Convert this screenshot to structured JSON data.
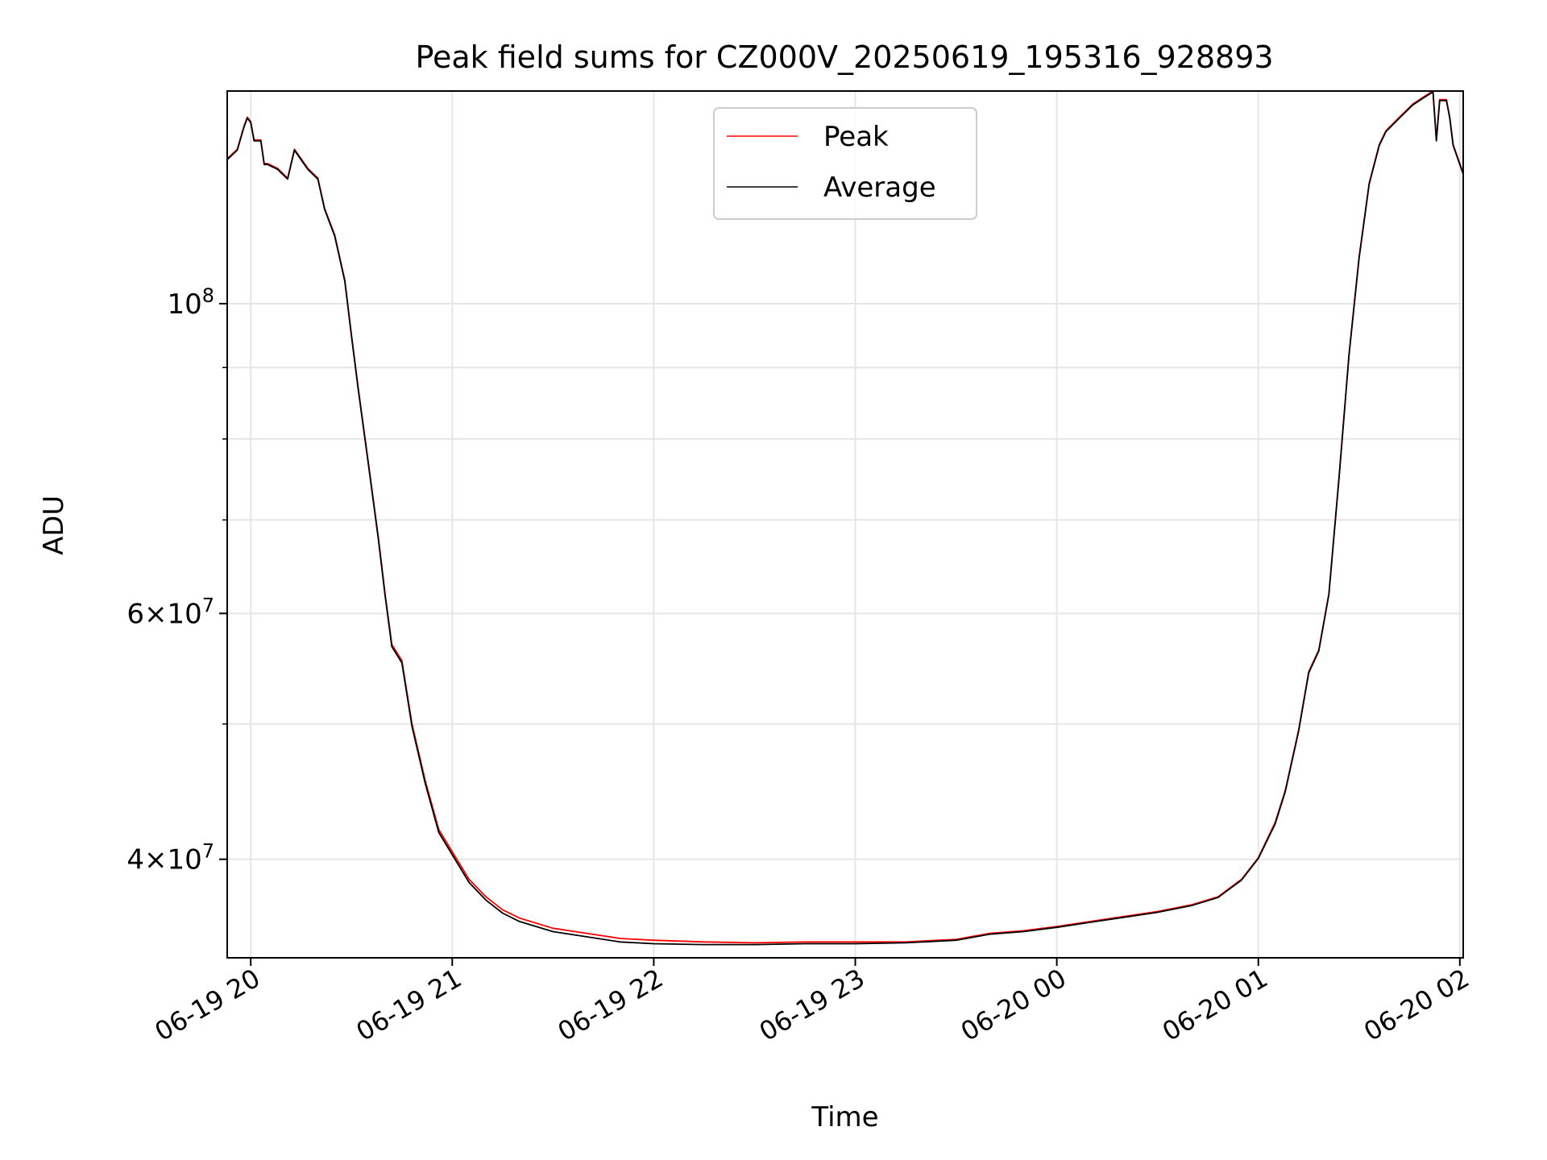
{
  "chart_data": {
    "type": "line",
    "title": "Peak field sums for CZ000V_20250619_195316_928893",
    "xlabel": "Time",
    "ylabel": "ADU",
    "y_scale": "log",
    "grid": true,
    "legend_position": "top-center",
    "x_ticks": [
      "06-19 20",
      "06-19 21",
      "06-19 22",
      "06-19 23",
      "06-20 00",
      "06-20 01",
      "06-20 02"
    ],
    "y_ticks": [
      {
        "value": 40000000,
        "base": "4",
        "exp": "7"
      },
      {
        "value": 60000000,
        "base": "6",
        "exp": "7"
      },
      {
        "value": 100000000,
        "base": "",
        "exp": "8"
      }
    ],
    "xlim": [
      "2025-06-19 19:53",
      "2025-06-20 02:01"
    ],
    "ylim": [
      34000000,
      142000000
    ],
    "colors": {
      "peak": "#ff0000",
      "average": "#000000"
    },
    "series": [
      {
        "name": "Peak",
        "x": [
          "2025-06-19 19:53",
          "2025-06-19 19:56",
          "2025-06-19 19:58",
          "2025-06-19 19:59",
          "2025-06-19 20:00",
          "2025-06-19 20:01",
          "2025-06-19 20:03",
          "2025-06-19 20:04",
          "2025-06-19 20:05",
          "2025-06-19 20:08",
          "2025-06-19 20:11",
          "2025-06-19 20:13",
          "2025-06-19 20:14",
          "2025-06-19 20:17",
          "2025-06-19 20:20",
          "2025-06-19 20:22",
          "2025-06-19 20:25",
          "2025-06-19 20:28",
          "2025-06-19 20:30",
          "2025-06-19 20:32",
          "2025-06-19 20:35",
          "2025-06-19 20:38",
          "2025-06-19 20:40",
          "2025-06-19 20:42",
          "2025-06-19 20:45",
          "2025-06-19 20:48",
          "2025-06-19 20:52",
          "2025-06-19 20:56",
          "2025-06-19 21:00",
          "2025-06-19 21:05",
          "2025-06-19 21:10",
          "2025-06-19 21:15",
          "2025-06-19 21:20",
          "2025-06-19 21:30",
          "2025-06-19 21:40",
          "2025-06-19 21:50",
          "2025-06-19 22:00",
          "2025-06-19 22:15",
          "2025-06-19 22:30",
          "2025-06-19 22:45",
          "2025-06-19 23:00",
          "2025-06-19 23:15",
          "2025-06-19 23:30",
          "2025-06-19 23:40",
          "2025-06-19 23:50",
          "2025-06-20 00:00",
          "2025-06-20 00:10",
          "2025-06-20 00:20",
          "2025-06-20 00:30",
          "2025-06-20 00:40",
          "2025-06-20 00:48",
          "2025-06-20 00:55",
          "2025-06-20 01:00",
          "2025-06-20 01:05",
          "2025-06-20 01:08",
          "2025-06-20 01:12",
          "2025-06-20 01:15",
          "2025-06-20 01:18",
          "2025-06-20 01:21",
          "2025-06-20 01:24",
          "2025-06-20 01:27",
          "2025-06-20 01:30",
          "2025-06-20 01:33",
          "2025-06-20 01:36",
          "2025-06-20 01:38",
          "2025-06-20 01:42",
          "2025-06-20 01:46",
          "2025-06-20 01:50",
          "2025-06-20 01:52",
          "2025-06-20 01:53",
          "2025-06-20 01:54",
          "2025-06-20 01:56",
          "2025-06-20 01:57",
          "2025-06-20 01:58",
          "2025-06-20 02:00",
          "2025-06-20 02:01"
        ],
        "y": [
          127000000,
          129000000,
          134000000,
          136000000,
          135000000,
          131000000,
          131000000,
          126000000,
          126000000,
          125000000,
          123000000,
          129000000,
          128000000,
          125000000,
          123000000,
          117000000,
          112000000,
          104000000,
          95000000,
          87000000,
          77000000,
          68000000,
          62000000,
          57000000,
          55500000,
          50000000,
          45500000,
          42000000,
          40500000,
          38700000,
          37600000,
          36800000,
          36300000,
          35700000,
          35400000,
          35100000,
          35000000,
          34900000,
          34850000,
          34900000,
          34900000,
          34900000,
          35050000,
          35400000,
          35550000,
          35800000,
          36100000,
          36400000,
          36700000,
          37100000,
          37600000,
          38700000,
          40100000,
          42500000,
          44800000,
          49500000,
          54500000,
          56500000,
          62000000,
          75000000,
          92000000,
          108000000,
          122000000,
          130000000,
          133000000,
          136000000,
          139000000,
          141000000,
          142000000,
          131000000,
          140000000,
          140000000,
          136000000,
          130000000,
          126000000,
          124000000
        ]
      },
      {
        "name": "Average",
        "x": [
          "2025-06-19 19:53",
          "2025-06-19 19:56",
          "2025-06-19 19:58",
          "2025-06-19 19:59",
          "2025-06-19 20:00",
          "2025-06-19 20:01",
          "2025-06-19 20:03",
          "2025-06-19 20:04",
          "2025-06-19 20:05",
          "2025-06-19 20:08",
          "2025-06-19 20:11",
          "2025-06-19 20:13",
          "2025-06-19 20:14",
          "2025-06-19 20:17",
          "2025-06-19 20:20",
          "2025-06-19 20:22",
          "2025-06-19 20:25",
          "2025-06-19 20:28",
          "2025-06-19 20:30",
          "2025-06-19 20:32",
          "2025-06-19 20:35",
          "2025-06-19 20:38",
          "2025-06-19 20:40",
          "2025-06-19 20:42",
          "2025-06-19 20:45",
          "2025-06-19 20:48",
          "2025-06-19 20:52",
          "2025-06-19 20:56",
          "2025-06-19 21:00",
          "2025-06-19 21:05",
          "2025-06-19 21:10",
          "2025-06-19 21:15",
          "2025-06-19 21:20",
          "2025-06-19 21:30",
          "2025-06-19 21:40",
          "2025-06-19 21:50",
          "2025-06-19 22:00",
          "2025-06-19 22:15",
          "2025-06-19 22:30",
          "2025-06-19 22:45",
          "2025-06-19 23:00",
          "2025-06-19 23:15",
          "2025-06-19 23:30",
          "2025-06-19 23:40",
          "2025-06-19 23:50",
          "2025-06-20 00:00",
          "2025-06-20 00:10",
          "2025-06-20 00:20",
          "2025-06-20 00:30",
          "2025-06-20 00:40",
          "2025-06-20 00:48",
          "2025-06-20 00:55",
          "2025-06-20 01:00",
          "2025-06-20 01:05",
          "2025-06-20 01:08",
          "2025-06-20 01:12",
          "2025-06-20 01:15",
          "2025-06-20 01:18",
          "2025-06-20 01:21",
          "2025-06-20 01:24",
          "2025-06-20 01:27",
          "2025-06-20 01:30",
          "2025-06-20 01:33",
          "2025-06-20 01:36",
          "2025-06-20 01:38",
          "2025-06-20 01:42",
          "2025-06-20 01:46",
          "2025-06-20 01:50",
          "2025-06-20 01:52",
          "2025-06-20 01:53",
          "2025-06-20 01:54",
          "2025-06-20 01:56",
          "2025-06-20 01:57",
          "2025-06-20 01:58",
          "2025-06-20 02:00",
          "2025-06-20 02:01"
        ],
        "y": [
          126800000,
          128800000,
          133800000,
          135800000,
          134800000,
          130800000,
          130800000,
          125800000,
          125800000,
          124800000,
          122800000,
          128800000,
          127800000,
          124800000,
          122800000,
          116800000,
          111800000,
          103800000,
          94800000,
          86800000,
          76800000,
          67800000,
          61800000,
          56800000,
          55300000,
          49800000,
          45300000,
          41800000,
          40300000,
          38500000,
          37400000,
          36600000,
          36100000,
          35500000,
          35200000,
          34900000,
          34800000,
          34750000,
          34750000,
          34800000,
          34800000,
          34850000,
          35000000,
          35350000,
          35500000,
          35750000,
          36050000,
          36350000,
          36650000,
          37050000,
          37550000,
          38650000,
          40050000,
          42400000,
          44700000,
          49400000,
          54400000,
          56400000,
          61900000,
          74900000,
          91900000,
          107800000,
          121800000,
          129800000,
          132800000,
          135800000,
          138800000,
          140800000,
          141800000,
          130800000,
          139800000,
          139800000,
          135800000,
          129800000,
          125800000,
          123800000
        ]
      }
    ]
  }
}
